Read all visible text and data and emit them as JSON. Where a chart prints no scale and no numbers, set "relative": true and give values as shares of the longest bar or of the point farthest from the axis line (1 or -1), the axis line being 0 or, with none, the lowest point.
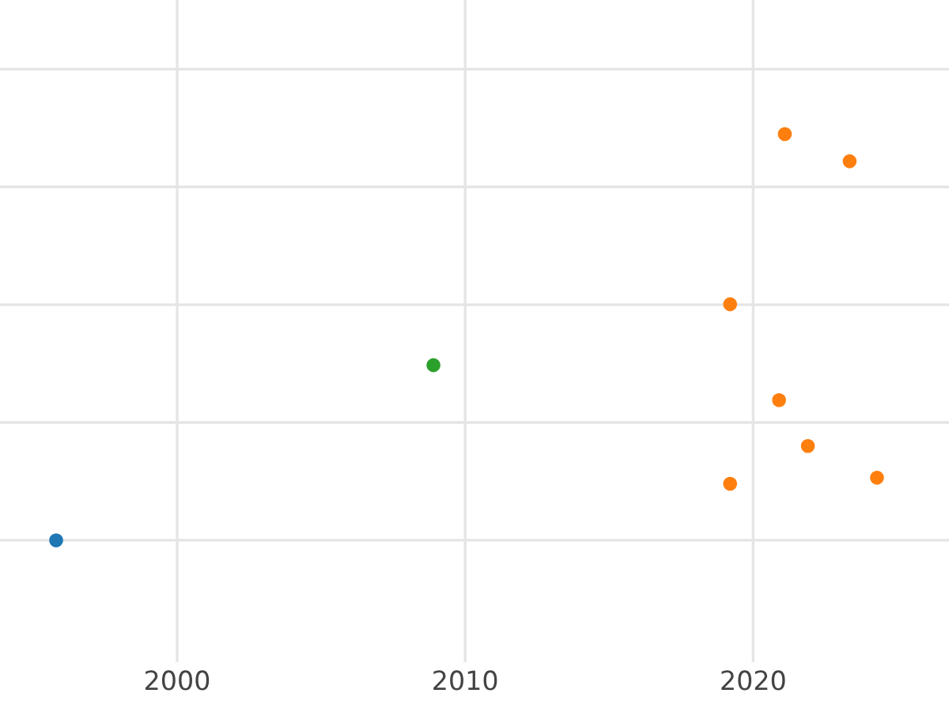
{
  "chart_data": {
    "type": "scatter",
    "relative": true,
    "series": [
      {
        "color": "#1f77b4",
        "x": [
          1995.8
        ],
        "values": [
          0
        ]
      },
      {
        "color": "#2ca02c",
        "x": [
          2008.9
        ],
        "values": [
          0.431
        ]
      },
      {
        "color": "#ff7f0e",
        "x": [
          2021.1,
          2023.35,
          2019.2,
          2020.9,
          2021.9,
          2019.2,
          2024.3
        ],
        "values": [
          1.0,
          0.933,
          0.581,
          0.345,
          0.232,
          0.139,
          0.154
        ]
      }
    ],
    "xlim": [
      1993.85,
      2026.8
    ],
    "xticks": [
      2000,
      2010,
      2020
    ],
    "grid": true,
    "marker": "circle",
    "tick_labels": "x"
  }
}
